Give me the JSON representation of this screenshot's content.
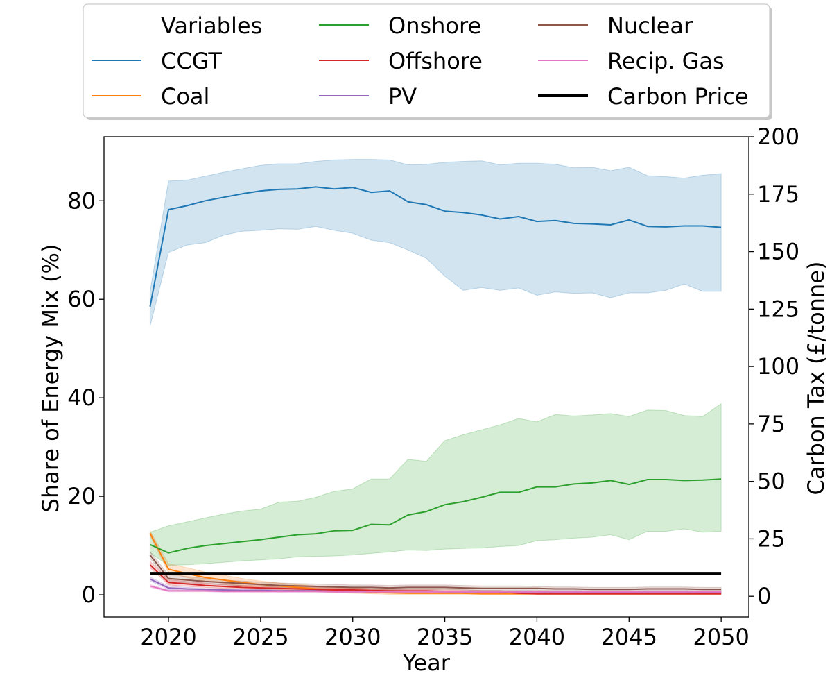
{
  "chart_data": {
    "type": "line",
    "xlabel": "Year",
    "ylabel": "Share of Energy Mix (%)",
    "y2label": "Carbon Tax (£/tonne)",
    "x": [
      2019,
      2020,
      2021,
      2022,
      2023,
      2024,
      2025,
      2026,
      2027,
      2028,
      2029,
      2030,
      2031,
      2032,
      2033,
      2034,
      2035,
      2036,
      2037,
      2038,
      2039,
      2040,
      2041,
      2042,
      2043,
      2044,
      2045,
      2046,
      2047,
      2048,
      2049,
      2050
    ],
    "xlim": [
      2016.5,
      2051.5
    ],
    "ylim": [
      -4.5,
      93
    ],
    "y2lim": [
      -9,
      200
    ],
    "xticks": [
      2020,
      2025,
      2030,
      2035,
      2040,
      2045,
      2050
    ],
    "yticks": [
      0,
      20,
      40,
      60,
      80
    ],
    "y2ticks": [
      0,
      25,
      50,
      75,
      100,
      125,
      150,
      175,
      200
    ],
    "grid": false,
    "legend": {
      "placement": "top-center, outside plot",
      "title": "Variables",
      "entries": [
        "CCGT",
        "Coal",
        "Onshore",
        "Offshore",
        "PV",
        "Nuclear",
        "Recip. Gas",
        "Carbon Price"
      ]
    },
    "series": [
      {
        "name": "CCGT",
        "color": "#1f77b4",
        "axis": "left",
        "values": [
          58.5,
          78.2,
          79,
          80,
          80.7,
          81.4,
          82,
          82.3,
          82.4,
          82.8,
          82.4,
          82.7,
          81.7,
          82,
          79.8,
          79.2,
          77.9,
          77.6,
          77.1,
          76.3,
          76.8,
          75.8,
          76,
          75.4,
          75.3,
          75.1,
          76.1,
          74.8,
          74.7,
          74.9,
          74.9,
          74.6
        ],
        "lower": [
          54.5,
          69.5,
          71,
          71.5,
          73,
          73.8,
          74,
          74.3,
          74.2,
          74.8,
          74,
          73.4,
          72,
          71.5,
          70,
          68.3,
          64.7,
          61.8,
          62.4,
          61.8,
          62.3,
          60.8,
          61.5,
          61.2,
          61.3,
          60.3,
          61.3,
          61.3,
          61.8,
          63.1,
          61.6,
          61.6
        ],
        "upper": [
          61.5,
          84,
          84.2,
          85,
          85.8,
          86.5,
          87.2,
          87.5,
          87.5,
          88,
          88.3,
          88.4,
          88.4,
          88.3,
          87.3,
          87.4,
          87.8,
          88,
          88.1,
          87.3,
          87.6,
          87.6,
          87.4,
          86.7,
          86.8,
          86.1,
          86.8,
          85.1,
          84.9,
          84.6,
          85.2,
          85.5
        ]
      },
      {
        "name": "Coal",
        "color": "#ff7f0e",
        "axis": "left",
        "values": [
          12.5,
          5.2,
          4.3,
          3.5,
          3,
          2.5,
          2.1,
          1.8,
          1.5,
          1.2,
          1,
          0.8,
          0.5,
          0.4,
          0.3,
          0.3,
          0.3,
          0.3,
          0.2,
          0.2,
          0.2,
          0.2,
          0.2,
          0.2,
          0.2,
          0.2,
          0.2,
          0.2,
          0.2,
          0.2,
          0.2,
          0.2
        ],
        "lower": [
          12,
          4.5,
          3.5,
          2.8,
          2.3,
          1.8,
          1.4,
          1.1,
          0.8,
          0.6,
          0.5,
          0.3,
          0.2,
          0.1,
          0.1,
          0.1,
          0.1,
          0.1,
          0.1,
          0.1,
          0.1,
          0.1,
          0.1,
          0.1,
          0.1,
          0.1,
          0.1,
          0.1,
          0.1,
          0.1,
          0.1,
          0.1
        ],
        "upper": [
          13,
          6.3,
          5.5,
          4.6,
          4,
          3.3,
          2.8,
          2.4,
          2.1,
          1.8,
          1.6,
          1.4,
          1.2,
          1,
          0.9,
          0.8,
          0.7,
          0.6,
          0.5,
          0.5,
          0.4,
          0.4,
          0.4,
          0.4,
          0.4,
          0.4,
          0.4,
          0.4,
          0.4,
          0.4,
          0.4,
          0.4
        ]
      },
      {
        "name": "Onshore",
        "color": "#2ca02c",
        "axis": "left",
        "values": [
          10.2,
          8.5,
          9.4,
          10,
          10.4,
          10.8,
          11.2,
          11.7,
          12.2,
          12.4,
          13,
          13.1,
          14.3,
          14.2,
          16.2,
          16.9,
          18.3,
          18.9,
          19.8,
          20.8,
          20.8,
          21.9,
          21.9,
          22.5,
          22.7,
          23.2,
          22.4,
          23.4,
          23.4,
          23.2,
          23.3,
          23.5
        ],
        "lower": [
          8.5,
          6,
          6.1,
          6.3,
          6.6,
          6.9,
          7.1,
          7.3,
          7.7,
          7.8,
          7.9,
          8.1,
          8.4,
          8.7,
          9.1,
          9,
          9.3,
          9.4,
          9.5,
          9.8,
          10,
          11,
          11.2,
          11.5,
          11.7,
          12.2,
          11.2,
          12.9,
          12.9,
          13.4,
          12.7,
          12.9
        ],
        "upper": [
          12.7,
          14,
          14.8,
          15.6,
          16.4,
          17,
          17.4,
          18.8,
          19,
          19.8,
          21,
          21.5,
          23.5,
          23.5,
          27.5,
          27.1,
          31.3,
          32.5,
          33.5,
          34.5,
          35.8,
          35.1,
          36.6,
          36.3,
          36.5,
          36.8,
          36.2,
          37.5,
          37.4,
          36.4,
          36.2,
          38.8
        ]
      },
      {
        "name": "Offshore",
        "color": "#d62728",
        "axis": "left",
        "values": [
          6.1,
          2.5,
          2.2,
          1.9,
          1.7,
          1.5,
          1.4,
          1.3,
          1.2,
          1.1,
          1,
          1,
          0.9,
          0.8,
          0.8,
          0.8,
          0.7,
          0.7,
          0.6,
          0.6,
          0.3,
          0.2,
          0.2,
          0.2,
          0.2,
          0.2,
          0.2,
          0.2,
          0.2,
          0.2,
          0.2,
          0.2
        ],
        "lower": [
          5.5,
          2,
          1.7,
          1.5,
          1.3,
          1.2,
          1.1,
          1,
          0.9,
          0.8,
          0.7,
          0.7,
          0.6,
          0.6,
          0.5,
          0.5,
          0.5,
          0.4,
          0.4,
          0.4,
          0.2,
          0.1,
          0.1,
          0.1,
          0.1,
          0.1,
          0.1,
          0.1,
          0.1,
          0.1,
          0.1,
          0.1
        ],
        "upper": [
          6.8,
          3.1,
          2.7,
          2.4,
          2.1,
          1.9,
          1.8,
          1.7,
          1.6,
          1.5,
          1.4,
          1.3,
          1.2,
          1.1,
          1.1,
          1.1,
          1,
          1,
          0.9,
          0.9,
          0.5,
          0.4,
          0.4,
          0.4,
          0.4,
          0.4,
          0.4,
          0.4,
          0.4,
          0.4,
          0.4,
          0.4
        ]
      },
      {
        "name": "PV",
        "color": "#9467bd",
        "axis": "left",
        "values": [
          3.2,
          1.4,
          1.2,
          1.1,
          1,
          0.9,
          0.9,
          0.8,
          0.8,
          0.8,
          0.7,
          0.7,
          0.7,
          0.7,
          0.7,
          0.7,
          0.6,
          0.6,
          0.6,
          0.6,
          0.6,
          0.6,
          0.5,
          0.5,
          0.5,
          0.5,
          0.5,
          0.5,
          0.5,
          0.5,
          0.5,
          0.5
        ],
        "lower": [
          2.8,
          1.1,
          1,
          0.9,
          0.8,
          0.7,
          0.7,
          0.6,
          0.6,
          0.6,
          0.5,
          0.5,
          0.5,
          0.5,
          0.5,
          0.5,
          0.4,
          0.4,
          0.4,
          0.4,
          0.4,
          0.4,
          0.3,
          0.3,
          0.3,
          0.3,
          0.3,
          0.3,
          0.3,
          0.3,
          0.3,
          0.3
        ],
        "upper": [
          3.6,
          1.8,
          1.5,
          1.3,
          1.2,
          1.1,
          1.1,
          1,
          1,
          1,
          0.9,
          0.9,
          0.9,
          0.9,
          0.9,
          0.9,
          0.8,
          0.8,
          0.8,
          0.8,
          0.8,
          0.8,
          0.7,
          0.7,
          0.7,
          0.7,
          0.7,
          0.7,
          0.7,
          0.7,
          0.7,
          0.7
        ]
      },
      {
        "name": "Nuclear",
        "color": "#8c564b",
        "axis": "left",
        "values": [
          8.1,
          3.3,
          3,
          2.7,
          2.5,
          2.3,
          2.1,
          1.9,
          1.8,
          1.7,
          1.6,
          1.5,
          1.5,
          1.4,
          1.5,
          1.5,
          1.5,
          1.4,
          1.3,
          1.3,
          1.3,
          1.3,
          1.2,
          1.2,
          1.1,
          1.1,
          1.1,
          1.2,
          1.2,
          1.2,
          1.1,
          1.1
        ],
        "lower": [
          7.4,
          2.7,
          2.4,
          2.2,
          2,
          1.8,
          1.7,
          1.5,
          1.4,
          1.3,
          1.2,
          1.1,
          1.1,
          1,
          1.1,
          1.1,
          1.1,
          1,
          0.9,
          0.9,
          0.9,
          0.9,
          0.9,
          0.9,
          0.8,
          0.8,
          0.8,
          0.9,
          0.9,
          0.9,
          0.8,
          0.8
        ],
        "upper": [
          8.8,
          4.1,
          3.7,
          3.3,
          3,
          2.8,
          2.6,
          2.4,
          2.3,
          2.2,
          2.1,
          2,
          2,
          1.9,
          2,
          2,
          2,
          1.9,
          1.8,
          1.8,
          1.8,
          1.7,
          1.6,
          1.6,
          1.5,
          1.5,
          1.5,
          1.6,
          1.6,
          1.6,
          1.5,
          1.5
        ]
      },
      {
        "name": "Recip. Gas",
        "color": "#e377c2",
        "axis": "left",
        "values": [
          1.8,
          0.8,
          0.8,
          0.8,
          0.7,
          0.7,
          0.7,
          0.7,
          0.7,
          0.7,
          0.6,
          0.6,
          0.6,
          0.6,
          0.6,
          0.6,
          0.6,
          0.6,
          0.6,
          0.6,
          0.6,
          0.6,
          0.6,
          0.6,
          0.6,
          0.6,
          0.6,
          0.6,
          0.6,
          0.6,
          0.6,
          0.6
        ],
        "lower": [
          1.5,
          0.6,
          0.6,
          0.6,
          0.5,
          0.5,
          0.5,
          0.5,
          0.5,
          0.5,
          0.4,
          0.4,
          0.4,
          0.4,
          0.4,
          0.4,
          0.4,
          0.4,
          0.4,
          0.4,
          0.4,
          0.4,
          0.4,
          0.4,
          0.4,
          0.4,
          0.4,
          0.4,
          0.4,
          0.4,
          0.4,
          0.4
        ],
        "upper": [
          2.1,
          1,
          1,
          1,
          0.9,
          0.9,
          0.9,
          0.9,
          0.9,
          0.9,
          0.8,
          0.8,
          0.8,
          0.8,
          0.8,
          0.8,
          0.8,
          0.8,
          0.8,
          0.8,
          0.8,
          0.8,
          0.8,
          0.8,
          0.8,
          0.8,
          0.8,
          0.8,
          0.8,
          0.8,
          0.8,
          0.8
        ]
      },
      {
        "name": "Carbon Price",
        "color": "#000000",
        "axis": "right",
        "values": [
          10,
          10,
          10,
          10,
          10,
          10,
          10,
          10,
          10,
          10,
          10,
          10,
          10,
          10,
          10,
          10,
          10,
          10,
          10,
          10,
          10,
          10,
          10,
          10,
          10,
          10,
          10,
          10,
          10,
          10,
          10,
          10
        ]
      }
    ]
  }
}
